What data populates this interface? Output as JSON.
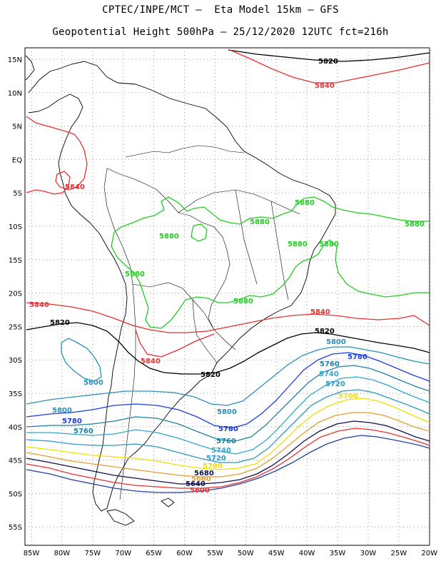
{
  "header": {
    "line1": "CPTEC/INPE/MCT –  Eta Model 15km – GFS",
    "line2": "Geopotential Height 500hPa – 25/12/2020 12UTC fct=216h"
  },
  "axes": {
    "lat_ticks": [
      "15N",
      "10N",
      "5N",
      "EQ",
      "5S",
      "10S",
      "15S",
      "20S",
      "25S",
      "30S",
      "35S",
      "40S",
      "45S",
      "50S",
      "55S"
    ],
    "lon_ticks": [
      "85W",
      "80W",
      "75W",
      "70W",
      "65W",
      "60W",
      "55W",
      "50W",
      "45W",
      "40W",
      "35W",
      "30W",
      "25W",
      "20W"
    ]
  },
  "colors": {
    "c5880": "#22cc22",
    "c5840": "#e83030",
    "c5820": "#000000",
    "c5800": "#2a90b8",
    "c5780": "#1a3ce0",
    "c5760": "#2080a0",
    "c5740": "#30a8c8",
    "c5720": "#2a98c0",
    "c5700": "#f0e000",
    "c5680": "#e0a030",
    "c5660": "#101050",
    "c5640": "#e83030",
    "c5600": "#2040a0"
  },
  "labels": {
    "l5820a": "5820",
    "l5840a": "5840",
    "l5840b": "5840",
    "l5880a": "5880",
    "l5880b": "5880",
    "l5880c": "5880",
    "l5880d": "5880",
    "l5880e": "5880",
    "l5880f": "5880",
    "l5880g": "5880",
    "l5880h": "5880",
    "l5840c": "5840",
    "l5840d": "5840",
    "l5840e": "5840",
    "l5820b": "5820",
    "l5820c": "5820",
    "l5820d": "5820",
    "l5800a": "5800",
    "l5800b": "5800",
    "l5800c": "5800",
    "l5800d": "5800",
    "l5780a": "5780",
    "l5780b": "5780",
    "l5780c": "5780",
    "l5760a": "5760",
    "l5760b": "5760",
    "l5760c": "5760",
    "l5740a": "5740",
    "l5740b": "5740",
    "l5720a": "5720",
    "l5720b": "5720",
    "l5700a": "5700",
    "l5700b": "5700",
    "l5680a": "5680",
    "l5660a": "5660",
    "l5640a": "5640",
    "l5600a": "5600"
  }
}
